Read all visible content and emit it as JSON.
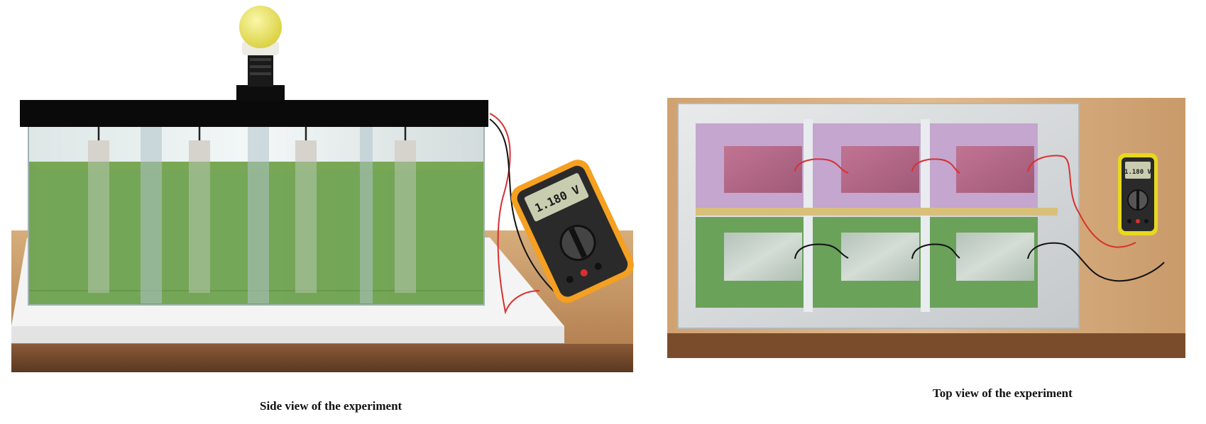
{
  "side_view": {
    "caption": "Side view of the experiment",
    "meter_reading": "1.180 V"
  },
  "top_view": {
    "caption": "Top view of the experiment",
    "meter_reading": "1.180 V"
  },
  "colors": {
    "liquid_green": "#6a9f4a",
    "top_row_purple": "#c4a6cf",
    "pink_plate": "#b86e8a",
    "bulb_yellow": "#f0ea6a",
    "meter_orange": "#f5a020",
    "meter_yellow": "#e8d820",
    "wire_red": "#d83030",
    "wire_black": "#111111",
    "wood": "#c99a6a"
  }
}
